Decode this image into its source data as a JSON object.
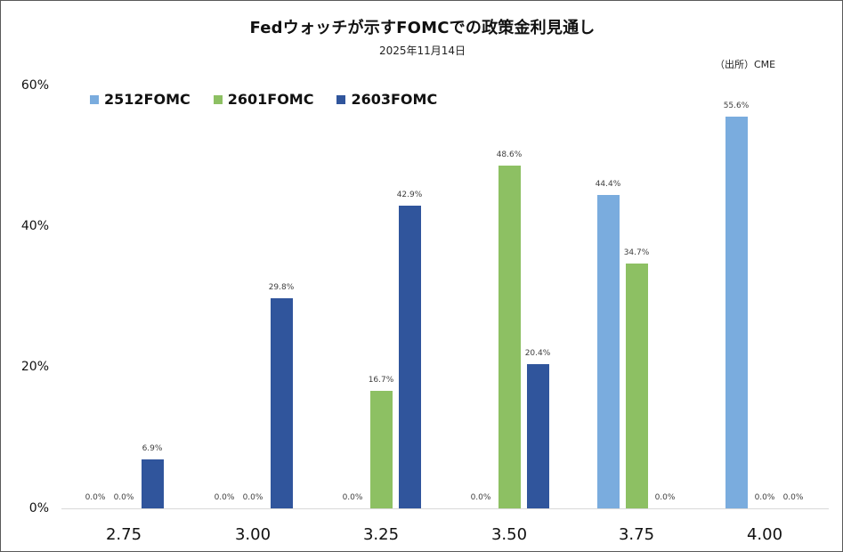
{
  "header": {
    "title": "Fedウォッチが示すFOMCでの政策金利見通し",
    "subtitle": "2025年11月14日",
    "source": "（出所）CME"
  },
  "legend": [
    {
      "label": "2512FOMC",
      "color": "#7aacde"
    },
    {
      "label": "2601FOMC",
      "color": "#8dc063"
    },
    {
      "label": "2603FOMC",
      "color": "#30559c"
    }
  ],
  "y_ticks": [
    "0%",
    "20%",
    "40%",
    "60%"
  ],
  "x_ticks": [
    "2.75",
    "3.00",
    "3.25",
    "3.50",
    "3.75",
    "4.00"
  ],
  "chart_data": {
    "type": "bar",
    "title": "Fedウォッチが示すFOMCでの政策金利見通し",
    "subtitle": "2025年11月14日",
    "annotation": "（出所）CME",
    "xlabel": "",
    "ylabel": "",
    "categories": [
      "2.75",
      "3.00",
      "3.25",
      "3.50",
      "3.75",
      "4.00"
    ],
    "series": [
      {
        "name": "2512FOMC",
        "color": "#7aacde",
        "values": [
          0.0,
          0.0,
          0.0,
          0.0,
          44.4,
          55.6
        ],
        "labels": [
          "0.0%",
          "0.0%",
          "0.0%",
          "0.0%",
          "44.4%",
          "55.6%"
        ]
      },
      {
        "name": "2601FOMC",
        "color": "#8dc063",
        "values": [
          0.0,
          0.0,
          16.7,
          48.6,
          34.7,
          0.0
        ],
        "labels": [
          "0.0%",
          "0.0%",
          "16.7%",
          "48.6%",
          "34.7%",
          "0.0%"
        ]
      },
      {
        "name": "2603FOMC",
        "color": "#30559c",
        "values": [
          6.9,
          29.8,
          42.9,
          20.4,
          0.0,
          0.0
        ],
        "labels": [
          "6.9%",
          "29.8%",
          "42.9%",
          "20.4%",
          "0.0%",
          "0.0%"
        ]
      }
    ],
    "ylim": [
      0,
      60
    ],
    "y_ticks": [
      "0%",
      "20%",
      "40%",
      "60%"
    ],
    "grid": false,
    "legend_position": "top-left"
  }
}
